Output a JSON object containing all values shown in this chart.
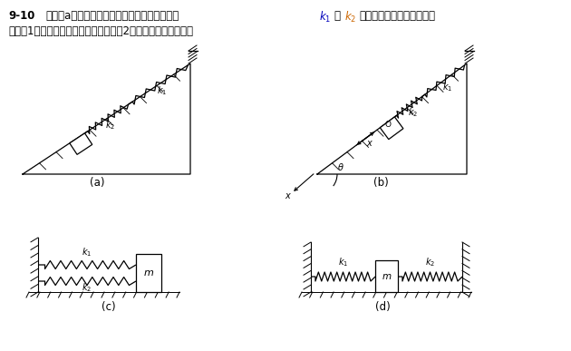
{
  "label_a": "(a)",
  "label_b": "(b)",
  "label_c": "(c)",
  "label_d": "(d)",
  "bg_color": "#ffffff",
  "line_color": "#000000",
  "title_bold": "9-10",
  "title_rest1": "如图（a）所示，两个轻弹簧的刦2度系数分别为",
  "title_k1_color": "#0000bb",
  "title_k2_color": "#cc6600",
  "title_rest2": "。当物体在光滑斜面上振动",
  "title_line2": "时．（1）证明其运动仍是简谐运动；（2）求系统的振动频率．"
}
